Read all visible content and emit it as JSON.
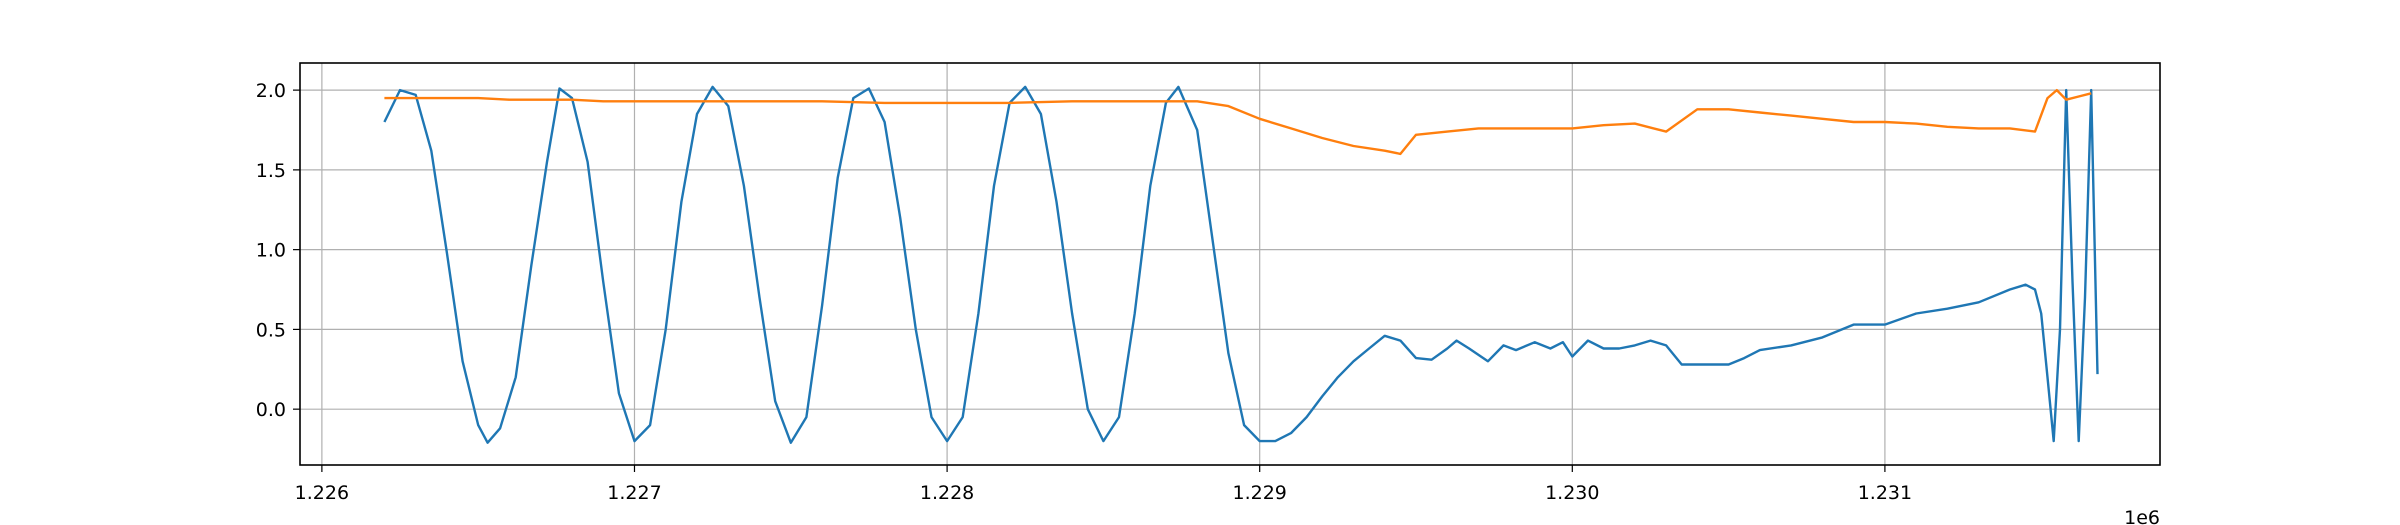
{
  "chart_data": {
    "type": "line",
    "title": "",
    "xlabel": "",
    "ylabel": "",
    "x_offset_label": "1e6",
    "xlim": [
      1.22593,
      1.23188
    ],
    "ylim": [
      -0.35,
      2.17
    ],
    "grid": true,
    "legend": "none",
    "x_ticks": [
      1.226,
      1.227,
      1.228,
      1.229,
      1.23,
      1.231
    ],
    "x_tick_labels": [
      "1.226",
      "1.227",
      "1.228",
      "1.229",
      "1.230",
      "1.231"
    ],
    "y_ticks": [
      0.0,
      0.5,
      1.0,
      1.5,
      2.0
    ],
    "y_tick_labels": [
      "0.0",
      "0.5",
      "1.0",
      "1.5",
      "2.0"
    ],
    "series": [
      {
        "color": "#1f77b4",
        "points": [
          [
            1.2262,
            1.8
          ],
          [
            1.22625,
            2.0
          ],
          [
            1.2263,
            1.97
          ],
          [
            1.22635,
            1.62
          ],
          [
            1.2264,
            0.98
          ],
          [
            1.22645,
            0.3
          ],
          [
            1.2265,
            -0.1
          ],
          [
            1.22653,
            -0.21
          ],
          [
            1.22657,
            -0.12
          ],
          [
            1.22662,
            0.2
          ],
          [
            1.22667,
            0.9
          ],
          [
            1.22672,
            1.55
          ],
          [
            1.22676,
            2.01
          ],
          [
            1.2268,
            1.95
          ],
          [
            1.22685,
            1.55
          ],
          [
            1.2269,
            0.8
          ],
          [
            1.22695,
            0.1
          ],
          [
            1.227,
            -0.2
          ],
          [
            1.22705,
            -0.1
          ],
          [
            1.2271,
            0.5
          ],
          [
            1.22715,
            1.3
          ],
          [
            1.2272,
            1.85
          ],
          [
            1.22725,
            2.02
          ],
          [
            1.2273,
            1.9
          ],
          [
            1.22735,
            1.4
          ],
          [
            1.2274,
            0.7
          ],
          [
            1.22745,
            0.05
          ],
          [
            1.2275,
            -0.21
          ],
          [
            1.22755,
            -0.05
          ],
          [
            1.2276,
            0.65
          ],
          [
            1.22765,
            1.45
          ],
          [
            1.2277,
            1.95
          ],
          [
            1.22775,
            2.01
          ],
          [
            1.2278,
            1.8
          ],
          [
            1.22785,
            1.2
          ],
          [
            1.2279,
            0.5
          ],
          [
            1.22795,
            -0.05
          ],
          [
            1.228,
            -0.2
          ],
          [
            1.22805,
            -0.05
          ],
          [
            1.2281,
            0.6
          ],
          [
            1.22815,
            1.4
          ],
          [
            1.2282,
            1.92
          ],
          [
            1.22825,
            2.02
          ],
          [
            1.2283,
            1.85
          ],
          [
            1.22835,
            1.3
          ],
          [
            1.2284,
            0.6
          ],
          [
            1.22845,
            0.0
          ],
          [
            1.2285,
            -0.2
          ],
          [
            1.22855,
            -0.05
          ],
          [
            1.2286,
            0.6
          ],
          [
            1.22865,
            1.4
          ],
          [
            1.2287,
            1.92
          ],
          [
            1.22874,
            2.02
          ],
          [
            1.2288,
            1.75
          ],
          [
            1.22885,
            1.05
          ],
          [
            1.2289,
            0.35
          ],
          [
            1.22895,
            -0.1
          ],
          [
            1.229,
            -0.2
          ],
          [
            1.22905,
            -0.2
          ],
          [
            1.2291,
            -0.15
          ],
          [
            1.22915,
            -0.05
          ],
          [
            1.2292,
            0.08
          ],
          [
            1.22925,
            0.2
          ],
          [
            1.2293,
            0.3
          ],
          [
            1.22935,
            0.38
          ],
          [
            1.2294,
            0.46
          ],
          [
            1.22945,
            0.43
          ],
          [
            1.2295,
            0.32
          ],
          [
            1.22955,
            0.31
          ],
          [
            1.2296,
            0.38
          ],
          [
            1.22963,
            0.43
          ],
          [
            1.22967,
            0.38
          ],
          [
            1.22973,
            0.3
          ],
          [
            1.22978,
            0.4
          ],
          [
            1.22982,
            0.37
          ],
          [
            1.22988,
            0.42
          ],
          [
            1.22993,
            0.38
          ],
          [
            1.22997,
            0.42
          ],
          [
            1.23,
            0.33
          ],
          [
            1.23005,
            0.43
          ],
          [
            1.2301,
            0.38
          ],
          [
            1.23015,
            0.38
          ],
          [
            1.2302,
            0.4
          ],
          [
            1.23025,
            0.43
          ],
          [
            1.2303,
            0.4
          ],
          [
            1.23035,
            0.28
          ],
          [
            1.2304,
            0.28
          ],
          [
            1.23045,
            0.28
          ],
          [
            1.2305,
            0.28
          ],
          [
            1.23055,
            0.32
          ],
          [
            1.2306,
            0.37
          ],
          [
            1.2307,
            0.4
          ],
          [
            1.2308,
            0.45
          ],
          [
            1.2309,
            0.53
          ],
          [
            1.231,
            0.53
          ],
          [
            1.2311,
            0.6
          ],
          [
            1.2312,
            0.63
          ],
          [
            1.2313,
            0.67
          ],
          [
            1.2314,
            0.75
          ],
          [
            1.23145,
            0.78
          ],
          [
            1.23148,
            0.75
          ],
          [
            1.2315,
            0.6
          ],
          [
            1.23152,
            0.2
          ],
          [
            1.23154,
            -0.2
          ],
          [
            1.23156,
            0.5
          ],
          [
            1.23158,
            2.0
          ],
          [
            1.2316,
            0.8
          ],
          [
            1.23162,
            -0.2
          ],
          [
            1.23164,
            0.7
          ],
          [
            1.23166,
            2.0
          ],
          [
            1.23168,
            0.22
          ]
        ]
      },
      {
        "color": "#ff7f0e",
        "points": [
          [
            1.2262,
            1.95
          ],
          [
            1.2263,
            1.95
          ],
          [
            1.2264,
            1.95
          ],
          [
            1.2265,
            1.95
          ],
          [
            1.2266,
            1.94
          ],
          [
            1.2267,
            1.94
          ],
          [
            1.2268,
            1.94
          ],
          [
            1.2269,
            1.93
          ],
          [
            1.227,
            1.93
          ],
          [
            1.2272,
            1.93
          ],
          [
            1.2274,
            1.93
          ],
          [
            1.2276,
            1.93
          ],
          [
            1.2278,
            1.92
          ],
          [
            1.228,
            1.92
          ],
          [
            1.2282,
            1.92
          ],
          [
            1.2284,
            1.93
          ],
          [
            1.2286,
            1.93
          ],
          [
            1.2288,
            1.93
          ],
          [
            1.2289,
            1.9
          ],
          [
            1.229,
            1.82
          ],
          [
            1.2291,
            1.76
          ],
          [
            1.2292,
            1.7
          ],
          [
            1.2293,
            1.65
          ],
          [
            1.2294,
            1.62
          ],
          [
            1.22945,
            1.6
          ],
          [
            1.2295,
            1.72
          ],
          [
            1.2296,
            1.74
          ],
          [
            1.2297,
            1.76
          ],
          [
            1.2298,
            1.76
          ],
          [
            1.2299,
            1.76
          ],
          [
            1.23,
            1.76
          ],
          [
            1.2301,
            1.78
          ],
          [
            1.2302,
            1.79
          ],
          [
            1.2303,
            1.74
          ],
          [
            1.2304,
            1.88
          ],
          [
            1.2305,
            1.88
          ],
          [
            1.2306,
            1.86
          ],
          [
            1.2307,
            1.84
          ],
          [
            1.2308,
            1.82
          ],
          [
            1.2309,
            1.8
          ],
          [
            1.231,
            1.8
          ],
          [
            1.2311,
            1.79
          ],
          [
            1.2312,
            1.77
          ],
          [
            1.2313,
            1.76
          ],
          [
            1.2314,
            1.76
          ],
          [
            1.23148,
            1.74
          ],
          [
            1.23152,
            1.95
          ],
          [
            1.23155,
            2.0
          ],
          [
            1.23158,
            1.94
          ],
          [
            1.23162,
            1.96
          ],
          [
            1.23166,
            1.98
          ]
        ]
      }
    ]
  }
}
